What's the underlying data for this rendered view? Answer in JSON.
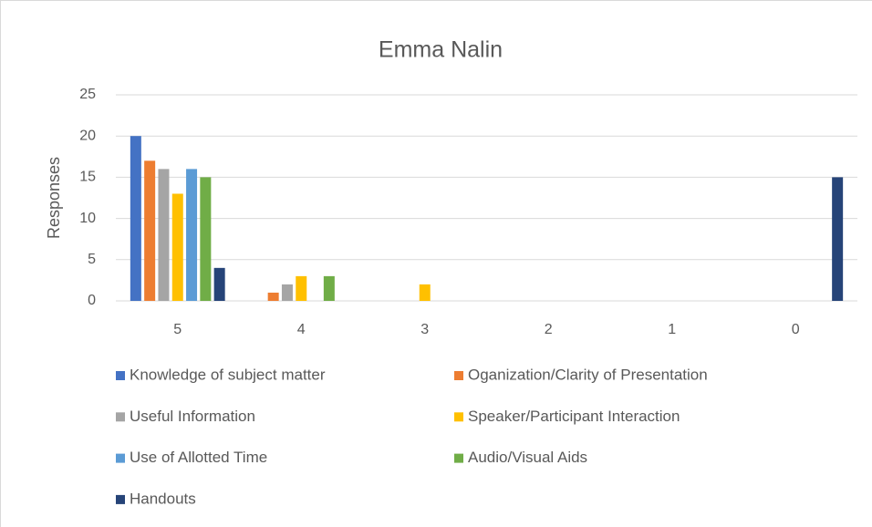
{
  "chart_data": {
    "type": "bar",
    "title": "Emma Nalin",
    "y_label": "Responses",
    "categories": [
      "5",
      "4",
      "3",
      "2",
      "1",
      "0"
    ],
    "series": [
      {
        "name": "Knowledge of subject matter",
        "color": "#4472c4",
        "values": [
          20,
          0,
          0,
          0,
          0,
          0
        ]
      },
      {
        "name": "Oganization/Clarity of Presentation",
        "color": "#ed7d31",
        "values": [
          17,
          1,
          0,
          0,
          0,
          0
        ]
      },
      {
        "name": "Useful Information",
        "color": "#a5a5a5",
        "values": [
          16,
          2,
          0,
          0,
          0,
          0
        ]
      },
      {
        "name": "Speaker/Participant Interaction",
        "color": "#ffc000",
        "values": [
          13,
          3,
          2,
          0,
          0,
          0
        ]
      },
      {
        "name": "Use of Allotted Time",
        "color": "#5b9bd5",
        "values": [
          16,
          0,
          0,
          0,
          0,
          0
        ]
      },
      {
        "name": "Audio/Visual Aids",
        "color": "#70ad47",
        "values": [
          15,
          3,
          0,
          0,
          0,
          0
        ]
      },
      {
        "name": "Handouts",
        "color": "#264478",
        "values": [
          4,
          0,
          0,
          0,
          0,
          15
        ]
      }
    ],
    "ylim": [
      0,
      25
    ],
    "yticks": [
      0,
      5,
      10,
      15,
      20,
      25
    ],
    "grid": true,
    "legend": "bottom"
  }
}
